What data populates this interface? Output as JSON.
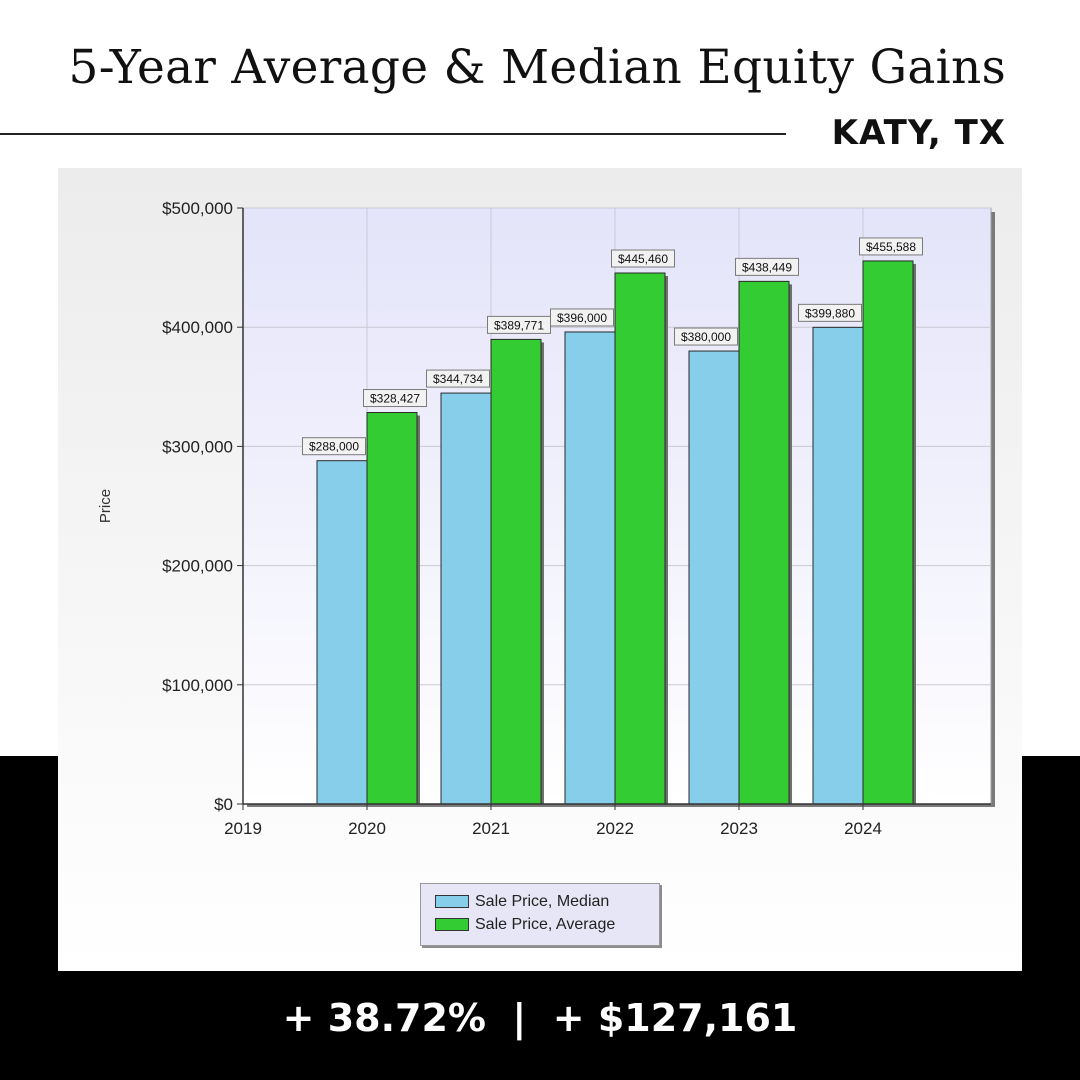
{
  "header": {
    "title": "5-Year Average & Median Equity Gains",
    "subtitle": "KATY, TX"
  },
  "footer": {
    "stats": "+ 38.72%  |  + $127,161"
  },
  "colors": {
    "median": "#87ceeb",
    "average": "#33cc33",
    "plot_background_top": "#e4e4fa",
    "band": "#000000"
  },
  "chart_data": {
    "type": "bar",
    "title": "",
    "xlabel": "",
    "ylabel": "Price",
    "x_ticks": [
      "2019",
      "2020",
      "2021",
      "2022",
      "2023",
      "2024"
    ],
    "categories": [
      "2020",
      "2021",
      "2022",
      "2023",
      "2024"
    ],
    "y_ticks": [
      "$0",
      "$100,000",
      "$200,000",
      "$300,000",
      "$400,000",
      "$500,000"
    ],
    "ylim": [
      0,
      500000
    ],
    "grid": true,
    "legend_position": "bottom-center",
    "series": [
      {
        "name": "Sale Price, Median",
        "color": "#87ceeb",
        "values": [
          288000,
          344734,
          396000,
          380000,
          399880
        ],
        "labels": [
          "$288,000",
          "$344,734",
          "$396,000",
          "$380,000",
          "$399,880"
        ]
      },
      {
        "name": "Sale Price, Average",
        "color": "#33cc33",
        "values": [
          328427,
          389771,
          445460,
          438449,
          455588
        ],
        "labels": [
          "$328,427",
          "$389,771",
          "$445,460",
          "$438,449",
          "$455,588"
        ]
      }
    ]
  }
}
